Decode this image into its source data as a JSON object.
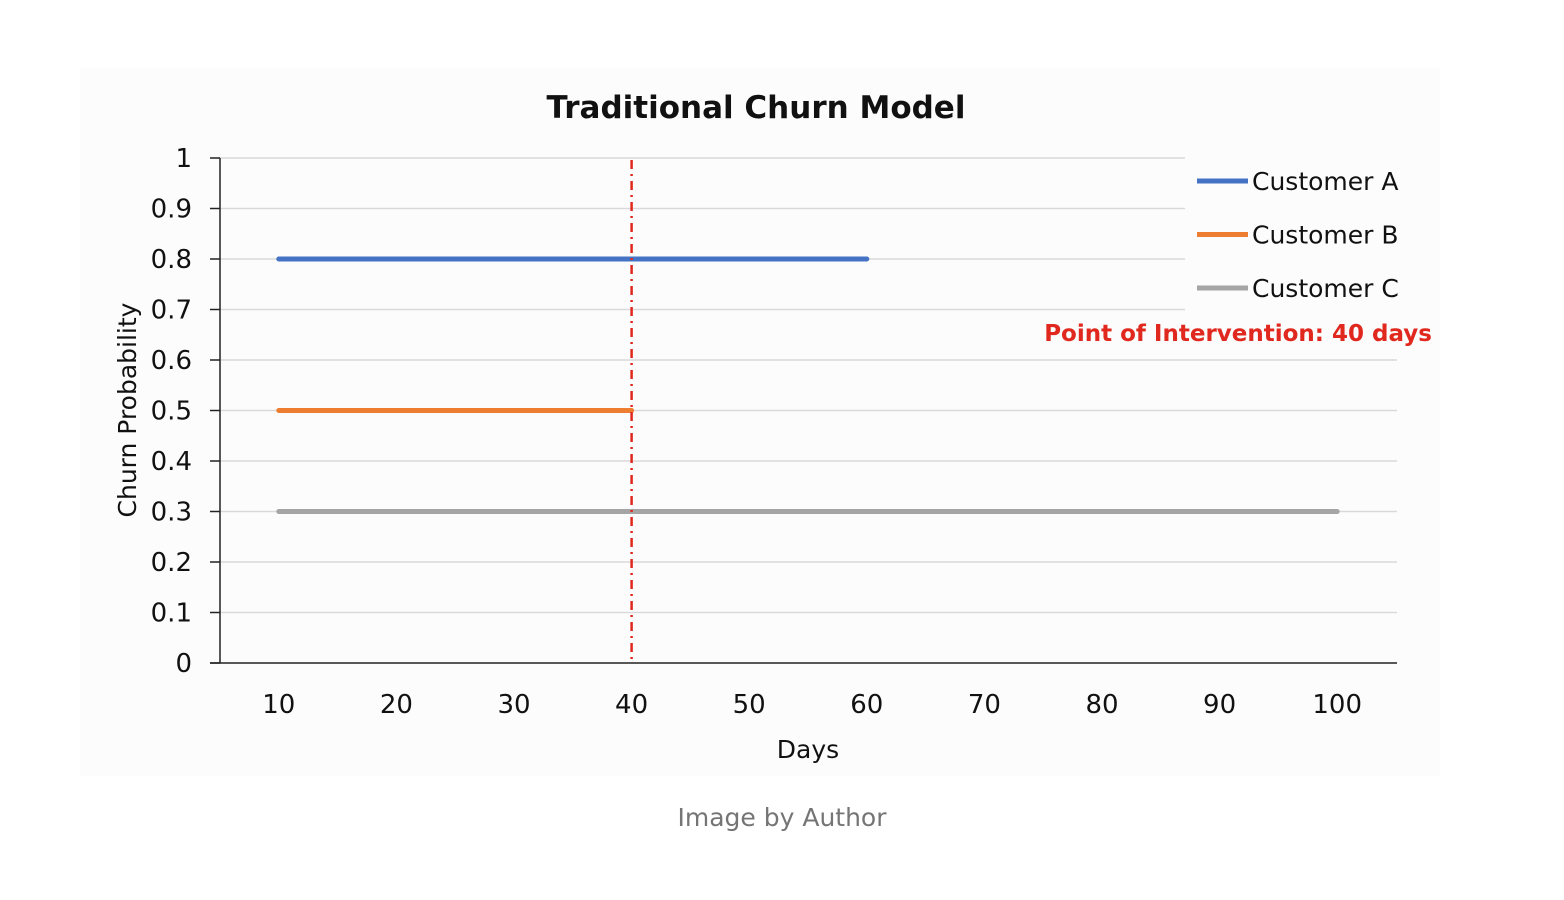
{
  "caption": "Image by Author",
  "colors": {
    "customer_a": "#4472c4",
    "customer_b": "#ed7d31",
    "customer_c": "#a5a5a5",
    "intervention": "#e0281e",
    "gridline": "#d9d9d9",
    "axis": "#222222"
  },
  "chart_data": {
    "type": "line",
    "title": "Traditional Churn Model",
    "xlabel": "Days",
    "ylabel": "Churn Probability",
    "x_ticks": [
      10,
      20,
      30,
      40,
      50,
      60,
      70,
      80,
      90,
      100
    ],
    "y_ticks": [
      0,
      0.1,
      0.2,
      0.3,
      0.4,
      0.5,
      0.6,
      0.7,
      0.8,
      0.9,
      1
    ],
    "ylim": [
      0,
      1
    ],
    "grid": true,
    "legend_position": "top-right",
    "series": [
      {
        "name": "Customer A",
        "x": [
          10,
          20,
          30,
          40,
          50,
          60
        ],
        "values": [
          0.8,
          0.8,
          0.8,
          0.8,
          0.8,
          0.8
        ]
      },
      {
        "name": "Customer B",
        "x": [
          10,
          20,
          30,
          40
        ],
        "values": [
          0.5,
          0.5,
          0.5,
          0.5
        ]
      },
      {
        "name": "Customer C",
        "x": [
          10,
          20,
          30,
          40,
          50,
          60,
          70,
          80,
          90,
          100
        ],
        "values": [
          0.3,
          0.3,
          0.3,
          0.3,
          0.3,
          0.3,
          0.3,
          0.3,
          0.3,
          0.3
        ]
      }
    ],
    "reference_line": {
      "x": 40,
      "style": "dash-dot"
    },
    "annotation": "Point of Intervention: 40 days"
  }
}
